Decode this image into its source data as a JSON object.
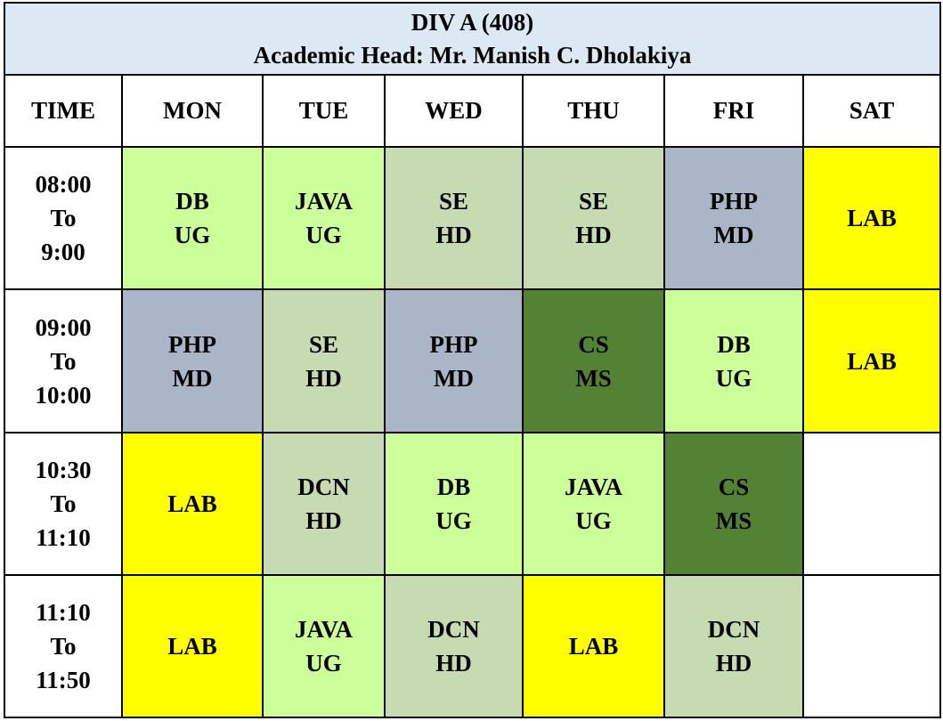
{
  "title": {
    "division": "DIV A (408)",
    "head": "Academic Head:  Mr. Manish C. Dholakiya"
  },
  "header": [
    "TIME",
    "MON",
    "TUE",
    "WED",
    "THU",
    "FRI",
    "SAT"
  ],
  "rows": [
    {
      "time": [
        "08:00",
        "To",
        "9:00"
      ],
      "cells": [
        {
          "subject": "DB",
          "teacher": "UG",
          "color": "#ccff99"
        },
        {
          "subject": "JAVA",
          "teacher": "UG",
          "color": "#ccff99"
        },
        {
          "subject": "SE",
          "teacher": "HD",
          "color": "#c6dbb2"
        },
        {
          "subject": "SE",
          "teacher": "HD",
          "color": "#c6dbb2"
        },
        {
          "subject": "PHP",
          "teacher": "MD",
          "color": "#aab6c8"
        },
        {
          "subject": "LAB",
          "teacher": "",
          "color": "#ffff00"
        }
      ]
    },
    {
      "time": [
        "09:00",
        "To",
        "10:00"
      ],
      "cells": [
        {
          "subject": "PHP",
          "teacher": "MD",
          "color": "#aab6c8"
        },
        {
          "subject": "SE",
          "teacher": "HD",
          "color": "#c6dbb2"
        },
        {
          "subject": "PHP",
          "teacher": "MD",
          "color": "#aab6c8"
        },
        {
          "subject": "CS",
          "teacher": "MS",
          "color": "#548235"
        },
        {
          "subject": "DB",
          "teacher": "UG",
          "color": "#ccff99"
        },
        {
          "subject": "LAB",
          "teacher": "",
          "color": "#ffff00"
        }
      ]
    },
    {
      "time": [
        "10:30",
        "To",
        "11:10"
      ],
      "cells": [
        {
          "subject": "LAB",
          "teacher": "",
          "color": "#ffff00"
        },
        {
          "subject": "DCN",
          "teacher": "HD",
          "color": "#c6dbb2"
        },
        {
          "subject": "DB",
          "teacher": "UG",
          "color": "#ccff99"
        },
        {
          "subject": "JAVA",
          "teacher": "UG",
          "color": "#ccff99"
        },
        {
          "subject": "CS",
          "teacher": "MS",
          "color": "#548235"
        },
        {
          "subject": "",
          "teacher": "",
          "color": "#ffffff"
        }
      ]
    },
    {
      "time": [
        "11:10",
        "To",
        "11:50"
      ],
      "cells": [
        {
          "subject": "LAB",
          "teacher": "",
          "color": "#ffff00"
        },
        {
          "subject": "JAVA",
          "teacher": "UG",
          "color": "#ccff99"
        },
        {
          "subject": "DCN",
          "teacher": "HD",
          "color": "#c6dbb2"
        },
        {
          "subject": "LAB",
          "teacher": "",
          "color": "#ffff00"
        },
        {
          "subject": "DCN",
          "teacher": "HD",
          "color": "#c6dbb2"
        },
        {
          "subject": "",
          "teacher": "",
          "color": "#ffffff"
        }
      ]
    }
  ]
}
